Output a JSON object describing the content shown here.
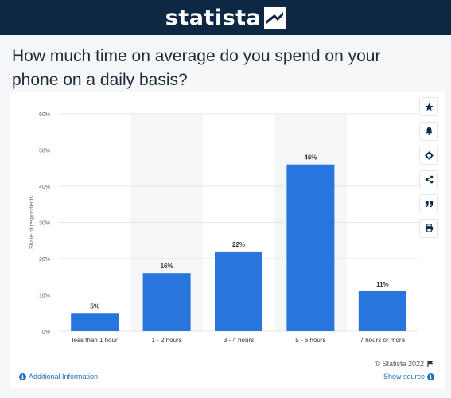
{
  "header": {
    "logo_text": "statista"
  },
  "question": "How much time on average do you spend on your phone on a daily basis?",
  "toolbar": [
    {
      "name": "favorite-star-icon",
      "glyph": "★"
    },
    {
      "name": "notification-bell-icon",
      "glyph": "bell"
    },
    {
      "name": "settings-gear-icon",
      "glyph": "gear"
    },
    {
      "name": "share-icon",
      "glyph": "share"
    },
    {
      "name": "cite-quote-icon",
      "glyph": "quote"
    },
    {
      "name": "print-icon",
      "glyph": "print"
    }
  ],
  "footer": {
    "copyright": "© Statista 2022",
    "additional_info": "Additional Information",
    "show_source": "Show source"
  },
  "colors": {
    "bar": "#2876dd",
    "header": "#0e2743",
    "link": "#1f6fbf"
  },
  "chart_data": {
    "type": "bar",
    "categories": [
      "less than 1 hour",
      "1 - 2 hours",
      "3 - 4 hours",
      "5 - 6 hours",
      "7 hours or more"
    ],
    "values": [
      5,
      16,
      22,
      46,
      11
    ],
    "value_labels": [
      "5%",
      "16%",
      "22%",
      "46%",
      "11%"
    ],
    "ylabel": "Share of respondents",
    "yticks": [
      "0%",
      "10%",
      "20%",
      "30%",
      "40%",
      "50%",
      "60%"
    ],
    "ylim": [
      0,
      60
    ],
    "grid": true,
    "shaded_alternate_columns": true
  }
}
